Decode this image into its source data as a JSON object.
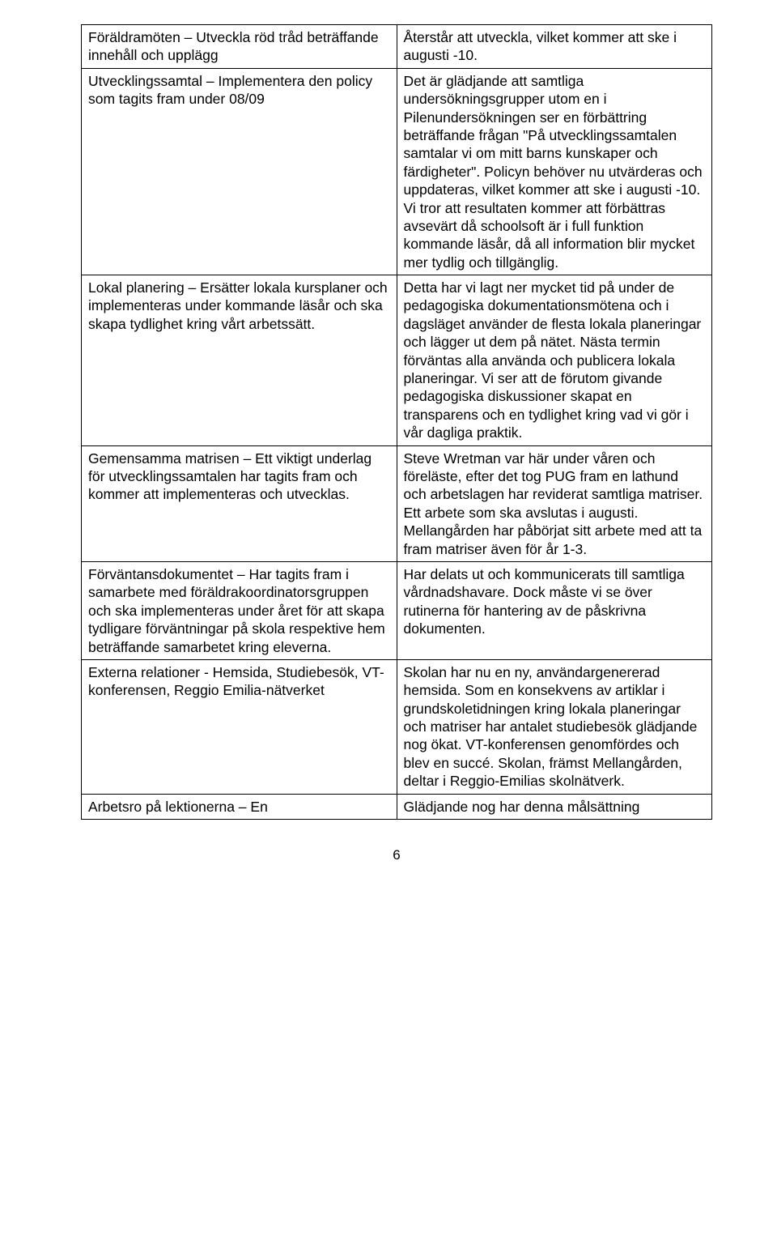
{
  "pageNumber": "6",
  "rows": [
    {
      "left": "Föräldramöten – Utveckla röd tråd beträffande innehåll och upplägg",
      "right": "Återstår att utveckla, vilket kommer att ske i augusti -10."
    },
    {
      "left": "Utvecklingssamtal – Implementera den policy som tagits fram under 08/09",
      "right": "Det är glädjande att samtliga undersökningsgrupper utom en i Pilenundersökningen ser en förbättring beträffande frågan \"På utvecklingssamtalen samtalar vi om mitt barns kunskaper och färdigheter\". Policyn behöver nu utvärderas och uppdateras, vilket kommer att ske i augusti -10. Vi tror att resultaten kommer att förbättras avsevärt då schoolsoft är i full funktion kommande läsår, då all information blir mycket mer tydlig och tillgänglig."
    },
    {
      "left": "Lokal planering – Ersätter lokala kursplaner och implementeras under kommande läsår och ska skapa tydlighet kring vårt arbetssätt.",
      "right": "Detta har vi lagt ner mycket tid på under de pedagogiska dokumentationsmötena och i dagsläget använder de flesta lokala planeringar och lägger ut dem på nätet. Nästa termin förväntas alla använda och publicera lokala planeringar. Vi ser att de förutom givande pedagogiska diskussioner skapat en transparens och en tydlighet kring vad vi gör i vår dagliga praktik."
    },
    {
      "left": "Gemensamma matrisen – Ett viktigt underlag för utvecklingssamtalen har tagits fram och kommer att implementeras och utvecklas.",
      "right": "Steve Wretman var här under våren och föreläste, efter det tog PUG fram en lathund och arbetslagen har reviderat samtliga matriser. Ett arbete som ska avslutas i augusti. Mellangården har påbörjat sitt arbete med att ta fram matriser även för år 1-3."
    },
    {
      "left": "Förväntansdokumentet – Har tagits fram i samarbete med föräldrakoordinatorsgruppen och ska implementeras under året för att skapa tydligare förväntningar på skola respektive hem beträffande samarbetet kring eleverna.",
      "right": "Har delats ut och kommunicerats till samtliga vårdnadshavare. Dock måste vi se över rutinerna för hantering av de påskrivna dokumenten."
    },
    {
      "left": "Externa relationer - Hemsida, Studiebesök, VT-konferensen, Reggio Emilia-nätverket",
      "right": "Skolan har nu en ny, användargenererad hemsida. Som en konsekvens av artiklar i grundskoletidningen kring lokala planeringar och matriser har antalet studiebesök glädjande nog  ökat. VT-konferensen genomfördes och blev en succé. Skolan, främst Mellangården, deltar i Reggio-Emilias skolnätverk."
    },
    {
      "left": "Arbetsro på lektionerna – En",
      "right": "Glädjande nog har denna målsättning"
    }
  ]
}
